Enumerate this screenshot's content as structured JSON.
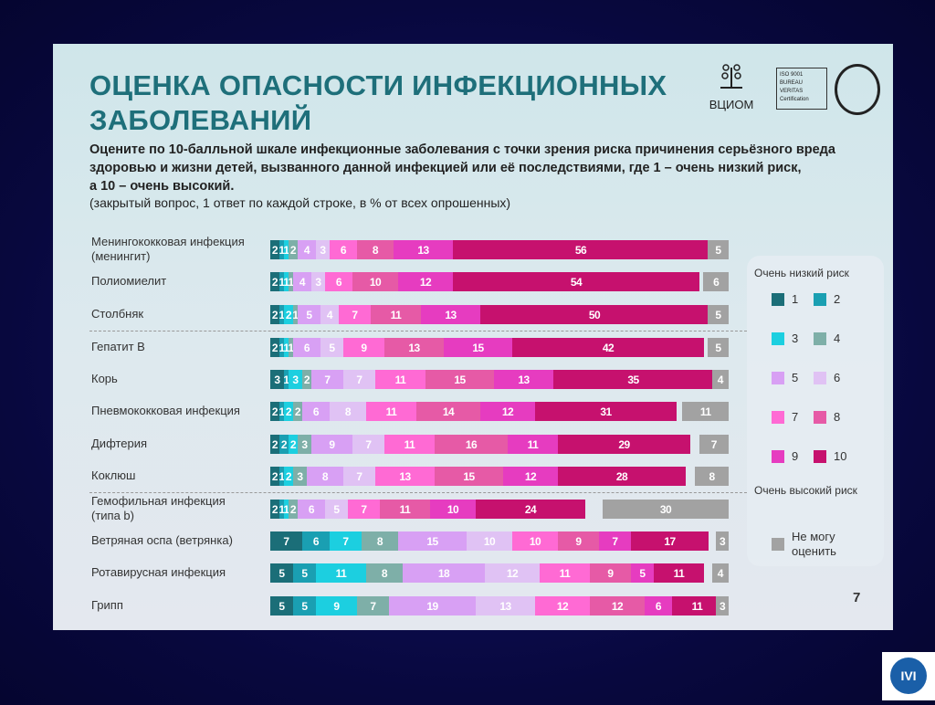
{
  "slide": {
    "title_line1": "ОЦЕНКА ОПАСНОСТИ ИНФЕКЦИОННЫХ",
    "title_line2": "ЗАБОЛЕВАНИЙ",
    "question_line1": "Оцените по 10-балльной шкале инфекционные заболевания с точки зрения риска причинения серьёзного вреда",
    "question_line2": "здоровью и жизни детей, вызванного данной инфекцией или её последствиями, где 1 – очень низкий риск,",
    "question_line3": "а 10 – очень высокий.",
    "note": "(закрытый вопрос, 1 ответ по каждой строке, в % от всех опрошенных)",
    "logo_text": "ВЦИОМ",
    "cert_text": "ISO 9001 BUREAU VERITAS Certification",
    "page_number": "7",
    "corner_logo_text": "IVI"
  },
  "chart_data": {
    "type": "bar",
    "stacked": true,
    "orientation": "horizontal",
    "title": "ОЦЕНКА ОПАСНОСТИ ИНФЕКЦИОННЫХ ЗАБОЛЕВАНИЙ",
    "unit": "%",
    "categories": [
      "Менингококковая инфекция (менингит)",
      "Полиомиелит",
      "Столбняк",
      "Гепатит В",
      "Корь",
      "Пневмококковая инфекция",
      "Дифтерия",
      "Коклюш",
      "Гемофильная инфекция (типа b)",
      "Ветряная оспа (ветрянка)",
      "Ротавирусная инфекция",
      "Грипп"
    ],
    "category_lines": [
      [
        "Менингококковая инфекция",
        "(менингит)"
      ],
      [
        "Полиомиелит"
      ],
      [
        "Столбняк"
      ],
      [
        "Гепатит В"
      ],
      [
        "Корь"
      ],
      [
        "Пневмококковая инфекция"
      ],
      [
        "Дифтерия"
      ],
      [
        "Коклюш"
      ],
      [
        "Гемофильная инфекция",
        " (типа b)"
      ],
      [
        "Ветряная оспа (ветрянка)"
      ],
      [
        "Ротавирусная инфекция"
      ],
      [
        "Грипп"
      ]
    ],
    "separators_after": [
      2,
      7
    ],
    "series": [
      {
        "name": "1",
        "color": "#1b6e78",
        "values": [
          2,
          2,
          2,
          2,
          3,
          2,
          2,
          2,
          2,
          7,
          5,
          5
        ]
      },
      {
        "name": "2",
        "color": "#1a9fb2",
        "values": [
          1,
          1,
          1,
          1,
          1,
          1,
          2,
          1,
          1,
          6,
          5,
          5
        ]
      },
      {
        "name": "3",
        "color": "#1ccfe0",
        "values": [
          1,
          1,
          2,
          1,
          3,
          2,
          2,
          2,
          1,
          7,
          11,
          9
        ]
      },
      {
        "name": "4",
        "color": "#7eafa8",
        "values": [
          2,
          1,
          1,
          1,
          2,
          2,
          3,
          3,
          2,
          8,
          8,
          7
        ]
      },
      {
        "name": "5",
        "color": "#d8a0f4",
        "values": [
          4,
          4,
          5,
          6,
          7,
          6,
          9,
          8,
          6,
          15,
          18,
          19
        ]
      },
      {
        "name": "6",
        "color": "#e0c2f4",
        "values": [
          3,
          3,
          4,
          5,
          7,
          8,
          7,
          7,
          5,
          10,
          12,
          13
        ]
      },
      {
        "name": "7",
        "color": "#ff6ad4",
        "values": [
          6,
          6,
          7,
          9,
          11,
          11,
          11,
          13,
          7,
          10,
          11,
          12
        ]
      },
      {
        "name": "8",
        "color": "#e65aa6",
        "values": [
          8,
          10,
          11,
          13,
          15,
          14,
          16,
          15,
          11,
          9,
          9,
          12
        ]
      },
      {
        "name": "9",
        "color": "#e63cc0",
        "values": [
          13,
          12,
          13,
          15,
          13,
          12,
          11,
          12,
          10,
          7,
          5,
          6
        ]
      },
      {
        "name": "10",
        "color": "#c6116e",
        "values": [
          56,
          54,
          50,
          42,
          35,
          31,
          29,
          28,
          24,
          17,
          11,
          11
        ]
      },
      {
        "name": "Не могу оценить",
        "color": "#a2a2a2",
        "values": [
          5,
          6,
          5,
          5,
          4,
          11,
          7,
          8,
          30,
          3,
          4,
          3
        ]
      }
    ],
    "legend": {
      "top_label": "Очень низкий риск",
      "bottom_label": "Очень высокий риск",
      "na_label_line1": "Не могу",
      "na_label_line2": "оценить",
      "placement": "right"
    }
  }
}
